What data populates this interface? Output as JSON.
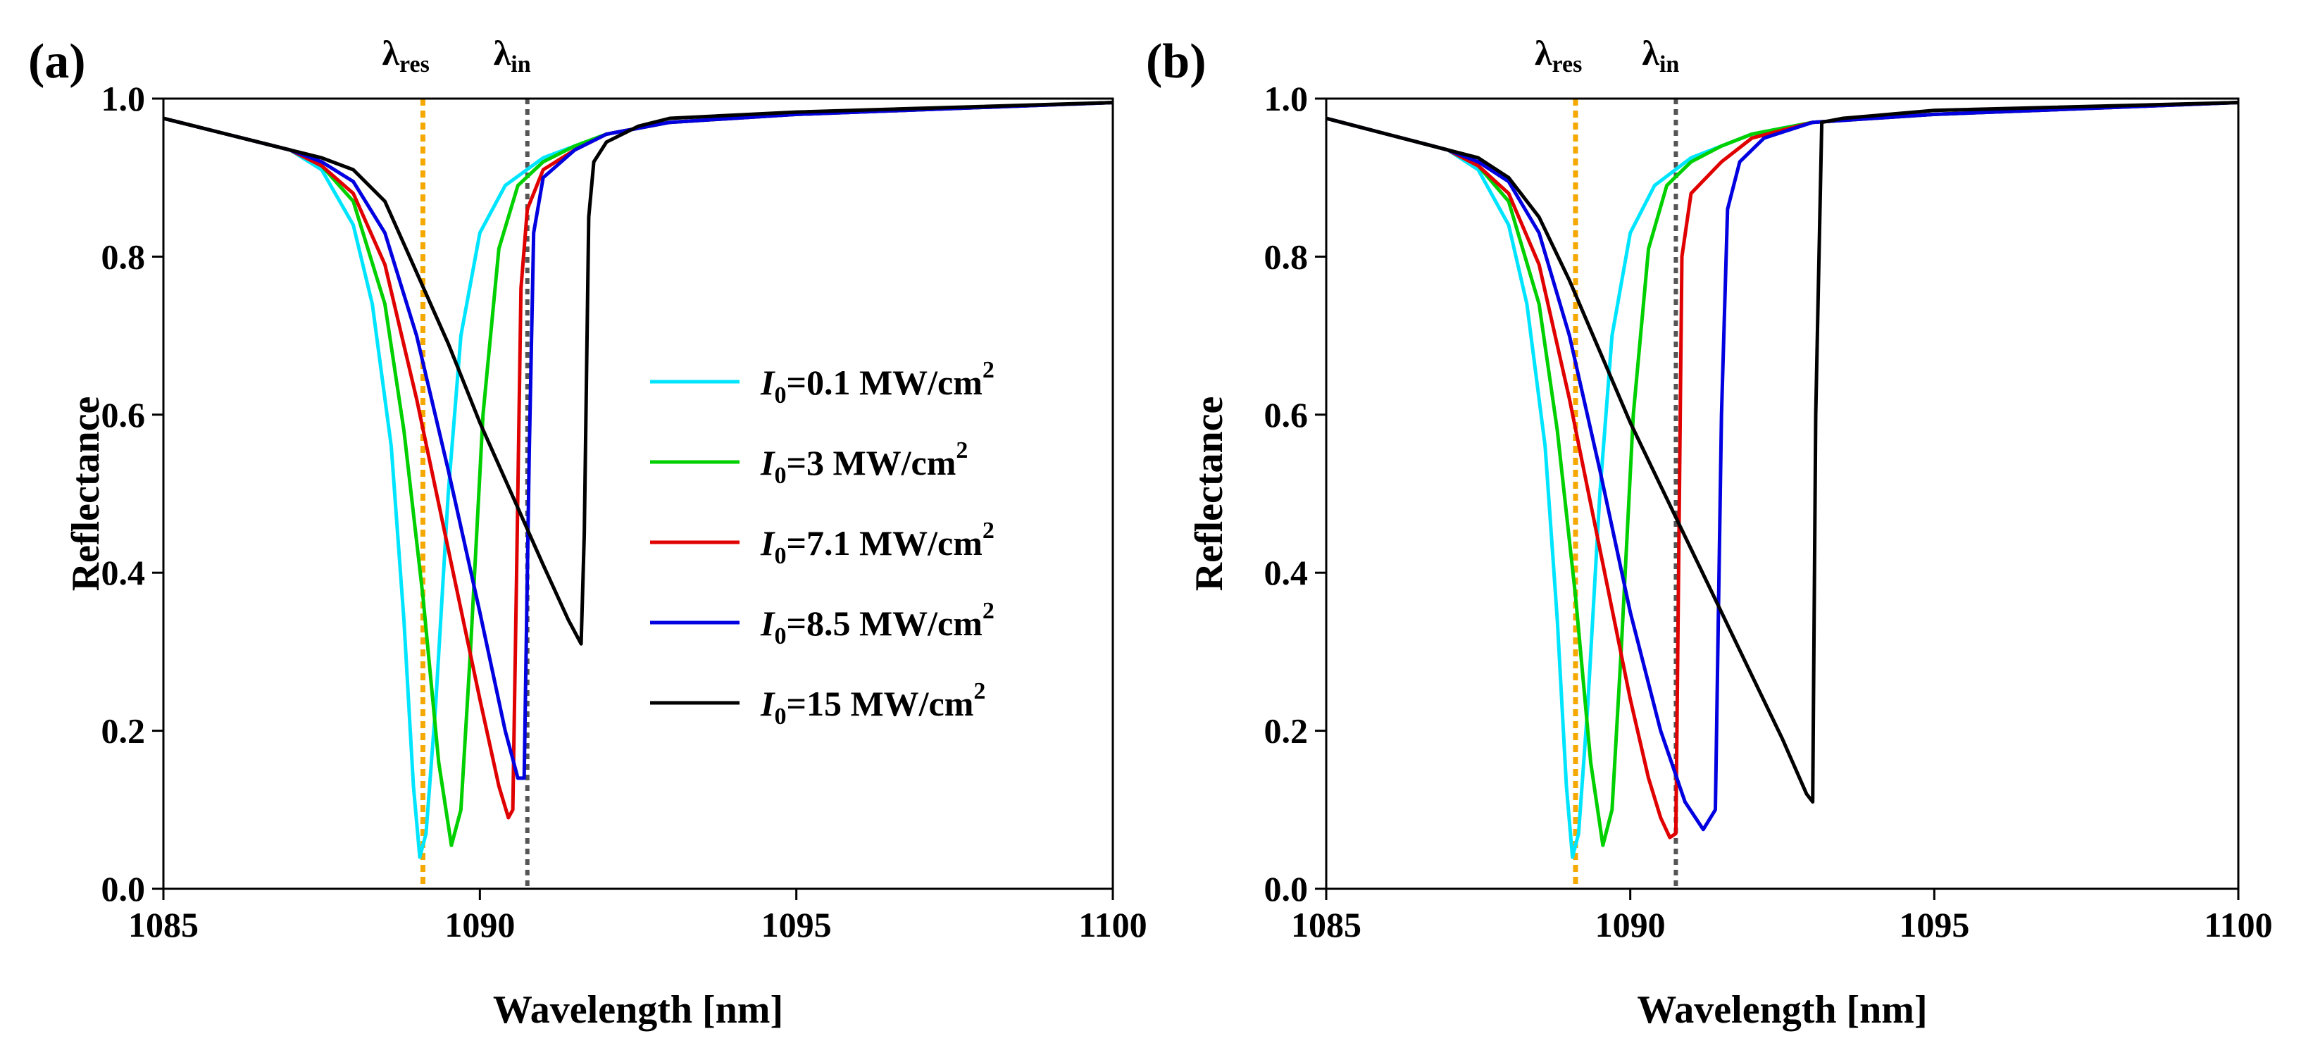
{
  "chart_data": [
    {
      "type": "line",
      "panel_label": "(a)",
      "xlabel": "Wavelength [nm]",
      "ylabel": "Reflectance",
      "xlim": [
        1085,
        1100
      ],
      "ylim": [
        0.0,
        1.0
      ],
      "xticks": [
        1085,
        1090,
        1095,
        1100
      ],
      "xtick_labels": [
        "1085",
        "1090",
        "1095",
        "1100"
      ],
      "yticks": [
        0.0,
        0.2,
        0.4,
        0.6,
        0.8,
        1.0
      ],
      "ytick_labels": [
        "0.0",
        "0.2",
        "0.4",
        "0.6",
        "0.8",
        "1.0"
      ],
      "markers": [
        {
          "symbol": "λ",
          "subscript": "res",
          "x": 1089.1,
          "color": "#f5a800"
        },
        {
          "symbol": "λ",
          "subscript": "in",
          "x": 1090.75,
          "color": "#555555"
        }
      ],
      "legend": {
        "placement": "center-right",
        "entries": [
          {
            "prefix": "I",
            "sub": "0",
            "text": "=0.1 MW/cm",
            "sup": "2",
            "color": "#00e5ff"
          },
          {
            "prefix": "I",
            "sub": "0",
            "text": "=3 MW/cm",
            "sup": "2",
            "color": "#00d000"
          },
          {
            "prefix": "I",
            "sub": "0",
            "text": "=7.1 MW/cm",
            "sup": "2",
            "color": "#e00000"
          },
          {
            "prefix": "I",
            "sub": "0",
            "text": "=8.5 MW/cm",
            "sup": "2",
            "color": "#0000e0"
          },
          {
            "prefix": "I",
            "sub": "0",
            "text": "=15 MW/cm",
            "sup": "2",
            "color": "#000000"
          }
        ]
      },
      "series": [
        {
          "name": "I0=0.1 MW/cm2",
          "color": "#00e5ff",
          "x": [
            1085,
            1086,
            1087,
            1087.5,
            1088,
            1088.3,
            1088.6,
            1088.8,
            1088.95,
            1089.05,
            1089.15,
            1089.3,
            1089.5,
            1089.7,
            1090,
            1090.4,
            1091,
            1092,
            1093,
            1095,
            1100
          ],
          "y": [
            0.975,
            0.955,
            0.935,
            0.91,
            0.84,
            0.74,
            0.56,
            0.34,
            0.13,
            0.04,
            0.07,
            0.23,
            0.5,
            0.7,
            0.83,
            0.89,
            0.925,
            0.955,
            0.97,
            0.98,
            0.995
          ]
        },
        {
          "name": "I0=3 MW/cm2",
          "color": "#00d000",
          "x": [
            1085,
            1086,
            1087,
            1087.5,
            1088,
            1088.5,
            1088.8,
            1089.1,
            1089.35,
            1089.55,
            1089.7,
            1089.85,
            1090.05,
            1090.3,
            1090.6,
            1091,
            1091.5,
            1092,
            1093,
            1095,
            1100
          ],
          "y": [
            0.975,
            0.955,
            0.935,
            0.915,
            0.87,
            0.74,
            0.58,
            0.37,
            0.16,
            0.055,
            0.1,
            0.3,
            0.6,
            0.81,
            0.89,
            0.92,
            0.94,
            0.955,
            0.97,
            0.98,
            0.995
          ]
        },
        {
          "name": "I0=7.1 MW/cm2",
          "color": "#e00000",
          "x": [
            1085,
            1086,
            1087,
            1087.5,
            1088,
            1088.5,
            1089,
            1089.5,
            1090,
            1090.3,
            1090.45,
            1090.52,
            1090.58,
            1090.65,
            1090.75,
            1091,
            1091.5,
            1092,
            1093,
            1095,
            1100
          ],
          "y": [
            0.975,
            0.955,
            0.935,
            0.915,
            0.88,
            0.79,
            0.62,
            0.43,
            0.24,
            0.13,
            0.09,
            0.1,
            0.4,
            0.76,
            0.86,
            0.91,
            0.935,
            0.955,
            0.97,
            0.98,
            0.995
          ]
        },
        {
          "name": "I0=8.5 MW/cm2",
          "color": "#0000e0",
          "x": [
            1085,
            1086,
            1087,
            1087.5,
            1088,
            1088.5,
            1089,
            1089.5,
            1090,
            1090.4,
            1090.6,
            1090.7,
            1090.78,
            1090.85,
            1091,
            1091.5,
            1092,
            1093,
            1095,
            1100
          ],
          "y": [
            0.975,
            0.955,
            0.935,
            0.92,
            0.895,
            0.83,
            0.7,
            0.53,
            0.35,
            0.2,
            0.14,
            0.14,
            0.55,
            0.83,
            0.9,
            0.935,
            0.955,
            0.97,
            0.98,
            0.995
          ]
        },
        {
          "name": "I0=15 MW/cm2",
          "color": "#000000",
          "x": [
            1085,
            1086,
            1087,
            1087.5,
            1088,
            1088.5,
            1089,
            1089.5,
            1090,
            1090.5,
            1091,
            1091.4,
            1091.6,
            1091.65,
            1091.72,
            1091.8,
            1092,
            1092.5,
            1093,
            1095,
            1100
          ],
          "y": [
            0.975,
            0.955,
            0.935,
            0.925,
            0.91,
            0.87,
            0.78,
            0.69,
            0.59,
            0.5,
            0.41,
            0.34,
            0.31,
            0.45,
            0.85,
            0.92,
            0.945,
            0.965,
            0.975,
            0.983,
            0.995
          ]
        }
      ]
    },
    {
      "type": "line",
      "panel_label": "(b)",
      "xlabel": "Wavelength [nm]",
      "ylabel": "Reflectance",
      "xlim": [
        1085,
        1100
      ],
      "ylim": [
        0.0,
        1.0
      ],
      "xticks": [
        1085,
        1090,
        1095,
        1100
      ],
      "xtick_labels": [
        "1085",
        "1090",
        "1095",
        "1100"
      ],
      "yticks": [
        0.0,
        0.2,
        0.4,
        0.6,
        0.8,
        1.0
      ],
      "ytick_labels": [
        "0.0",
        "0.2",
        "0.4",
        "0.6",
        "0.8",
        "1.0"
      ],
      "markers": [
        {
          "symbol": "λ",
          "subscript": "res",
          "x": 1089.1,
          "color": "#f5a800"
        },
        {
          "symbol": "λ",
          "subscript": "in",
          "x": 1090.75,
          "color": "#555555"
        }
      ],
      "series": [
        {
          "name": "I0=0.1 MW/cm2",
          "color": "#00e5ff",
          "x": [
            1085,
            1086,
            1087,
            1087.5,
            1088,
            1088.3,
            1088.6,
            1088.8,
            1088.95,
            1089.05,
            1089.15,
            1089.3,
            1089.5,
            1089.7,
            1090,
            1090.4,
            1091,
            1092,
            1093,
            1095,
            1100
          ],
          "y": [
            0.975,
            0.955,
            0.935,
            0.91,
            0.84,
            0.74,
            0.56,
            0.34,
            0.13,
            0.04,
            0.07,
            0.23,
            0.5,
            0.7,
            0.83,
            0.89,
            0.925,
            0.955,
            0.97,
            0.98,
            0.995
          ]
        },
        {
          "name": "I0=3 MW/cm2",
          "color": "#00d000",
          "x": [
            1085,
            1086,
            1087,
            1087.5,
            1088,
            1088.5,
            1088.8,
            1089.1,
            1089.35,
            1089.55,
            1089.7,
            1089.85,
            1090.05,
            1090.3,
            1090.6,
            1091,
            1091.5,
            1092,
            1093,
            1095,
            1100
          ],
          "y": [
            0.975,
            0.955,
            0.935,
            0.915,
            0.87,
            0.74,
            0.58,
            0.37,
            0.16,
            0.055,
            0.1,
            0.3,
            0.6,
            0.81,
            0.89,
            0.92,
            0.94,
            0.955,
            0.97,
            0.98,
            0.995
          ]
        },
        {
          "name": "I0=7.1 MW/cm2",
          "color": "#e00000",
          "x": [
            1085,
            1086,
            1087,
            1087.5,
            1088,
            1088.5,
            1089,
            1089.5,
            1090,
            1090.3,
            1090.5,
            1090.65,
            1090.75,
            1090.85,
            1091,
            1091.5,
            1092,
            1093,
            1095,
            1100
          ],
          "y": [
            0.975,
            0.955,
            0.935,
            0.915,
            0.88,
            0.79,
            0.62,
            0.43,
            0.24,
            0.14,
            0.09,
            0.065,
            0.07,
            0.8,
            0.88,
            0.92,
            0.95,
            0.97,
            0.98,
            0.995
          ]
        },
        {
          "name": "I0=8.5 MW/cm2",
          "color": "#0000e0",
          "x": [
            1085,
            1086,
            1087,
            1087.5,
            1088,
            1088.5,
            1089,
            1089.5,
            1090,
            1090.5,
            1090.9,
            1091.2,
            1091.4,
            1091.5,
            1091.6,
            1091.8,
            1092.2,
            1093,
            1095,
            1100
          ],
          "y": [
            0.975,
            0.955,
            0.935,
            0.92,
            0.895,
            0.83,
            0.7,
            0.53,
            0.35,
            0.2,
            0.11,
            0.075,
            0.1,
            0.6,
            0.86,
            0.92,
            0.95,
            0.97,
            0.98,
            0.995
          ]
        },
        {
          "name": "I0=15 MW/cm2",
          "color": "#000000",
          "x": [
            1085,
            1086,
            1087,
            1087.5,
            1088,
            1088.5,
            1089,
            1089.5,
            1090,
            1090.5,
            1091,
            1091.5,
            1092,
            1092.5,
            1092.9,
            1093.0,
            1093.05,
            1093.15,
            1093.5,
            1095,
            1100
          ],
          "y": [
            0.975,
            0.955,
            0.935,
            0.925,
            0.9,
            0.85,
            0.77,
            0.68,
            0.59,
            0.51,
            0.43,
            0.35,
            0.27,
            0.19,
            0.12,
            0.11,
            0.6,
            0.97,
            0.975,
            0.985,
            0.995
          ]
        }
      ]
    }
  ]
}
